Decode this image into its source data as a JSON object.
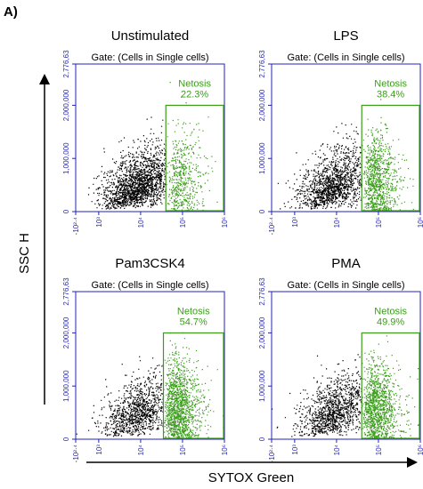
{
  "panel_label": "A)",
  "y_axis_label": "SSC H",
  "x_axis_label": "SYTOX Green",
  "chart_data": [
    {
      "type": "scatter",
      "title": "Unstimulated",
      "gate_label": "Gate: (Cells in Single cells)",
      "gate_name": "Netosis",
      "value": 22.3,
      "value_label": "22.3%",
      "gate": {
        "xmin": 40000,
        "xmax": 1000000,
        "ymin": 0,
        "ymax": 2000000
      },
      "xscale": "log",
      "xlim": [
        -251,
        1000000
      ],
      "xticks": [
        {
          "value": -251,
          "label": "-10²·⁴"
        },
        {
          "value": 1000,
          "label": "10³"
        },
        {
          "value": 10000,
          "label": "10⁴"
        },
        {
          "value": 100000,
          "label": "10⁵"
        },
        {
          "value": 1000000,
          "label": "10⁶"
        }
      ],
      "ylim": [
        0,
        2776630
      ],
      "yticks": [
        0,
        {
          "value": 1000000,
          "label": "1,000,000"
        },
        {
          "value": 2000000,
          "label": "2,000,000"
        },
        {
          "value": 2776630,
          "label": "2,776,63"
        }
      ]
    },
    {
      "type": "scatter",
      "title": "LPS",
      "gate_label": "Gate: (Cells in Single cells)",
      "gate_name": "Netosis",
      "value": 38.4,
      "value_label": "38.4%",
      "gate": {
        "xmin": 40000,
        "xmax": 1000000,
        "ymin": 0,
        "ymax": 2000000
      },
      "xscale": "log",
      "xlim": [
        -251,
        1000000
      ],
      "xticks": [
        {
          "value": -251,
          "label": "-10²·⁴"
        },
        {
          "value": 1000,
          "label": "10³"
        },
        {
          "value": 10000,
          "label": "10⁴"
        },
        {
          "value": 100000,
          "label": "10⁵"
        },
        {
          "value": 1000000,
          "label": "10⁶"
        }
      ],
      "ylim": [
        0,
        2776630
      ],
      "yticks": [
        0,
        {
          "value": 1000000,
          "label": "1,000,000"
        },
        {
          "value": 2000000,
          "label": "2,000,000"
        },
        {
          "value": 2776630,
          "label": "2,776,63"
        }
      ]
    },
    {
      "type": "scatter",
      "title": "Pam3CSK4",
      "gate_label": "Gate: (Cells in Single cells)",
      "gate_name": "Netosis",
      "value": 54.7,
      "value_label": "54.7%",
      "gate": {
        "xmin": 35000,
        "xmax": 1000000,
        "ymin": 0,
        "ymax": 2000000
      },
      "xscale": "log",
      "xlim": [
        -251,
        1000000
      ],
      "xticks": [
        {
          "value": -251,
          "label": "-10²·⁴"
        },
        {
          "value": 1000,
          "label": "10³"
        },
        {
          "value": 10000,
          "label": "10⁴"
        },
        {
          "value": 100000,
          "label": "10⁵"
        },
        {
          "value": 1000000,
          "label": "10⁶"
        }
      ],
      "ylim": [
        0,
        2776630
      ],
      "yticks": [
        0,
        {
          "value": 1000000,
          "label": "1,000,000"
        },
        {
          "value": 2000000,
          "label": "2,000,000"
        },
        {
          "value": 2776630,
          "label": "2,776,63"
        }
      ]
    },
    {
      "type": "scatter",
      "title": "PMA",
      "gate_label": "Gate: (Cells in Single cells)",
      "gate_name": "Netosis",
      "value": 49.9,
      "value_label": "49.9%",
      "gate": {
        "xmin": 40000,
        "xmax": 1000000,
        "ymin": 0,
        "ymax": 2000000
      },
      "xscale": "log",
      "xlim": [
        -251,
        1000000
      ],
      "xticks": [
        {
          "value": -251,
          "label": "-10²·⁴"
        },
        {
          "value": 1000,
          "label": "10³"
        },
        {
          "value": 10000,
          "label": "10⁴"
        },
        {
          "value": 100000,
          "label": "10⁵"
        },
        {
          "value": 1000000,
          "label": "10⁶"
        }
      ],
      "ylim": [
        0,
        2776630
      ],
      "yticks": [
        0,
        {
          "value": 1000000,
          "label": "1,000,000"
        },
        {
          "value": 2000000,
          "label": "2,000,000"
        },
        {
          "value": 2776630,
          "label": "2,776,63"
        }
      ]
    }
  ]
}
